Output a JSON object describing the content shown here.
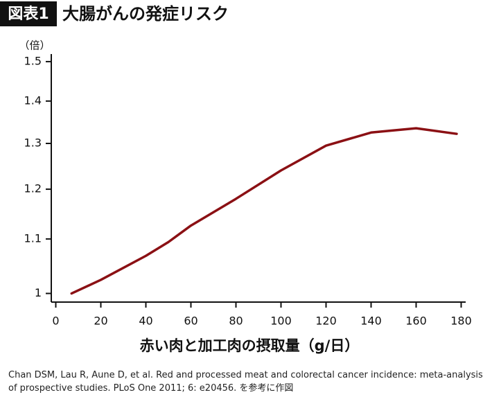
{
  "chart_data": {
    "type": "line",
    "badge": "図表1",
    "title": "大腸がんの発症リスク",
    "y_unit": "（倍）",
    "x_label": "赤い肉と加工肉の摂取量（g/日）",
    "source": "Chan DSM, Lau R, Aune D, et al. Red and processed meat and colorectal cancer incidence: meta-analysis of prospective studies. PLoS One 2011; 6: e20456. を参考に作図",
    "x": [
      7,
      20,
      40,
      50,
      60,
      80,
      100,
      120,
      140,
      160,
      178
    ],
    "series": [
      {
        "color": "#8b1014",
        "values": [
          1.0,
          1.024,
          1.068,
          1.094,
          1.126,
          1.18,
          1.24,
          1.295,
          1.325,
          1.335,
          1.322
        ]
      }
    ],
    "xlim": [
      -2,
      182
    ],
    "xticks": [
      0,
      20,
      40,
      60,
      80,
      100,
      120,
      140,
      160,
      180
    ],
    "ylim": [
      0.985,
      1.52
    ],
    "yticks": [
      1,
      1.1,
      1.2,
      1.3,
      1.4,
      1.5
    ],
    "ylog": true,
    "grid": false
  }
}
